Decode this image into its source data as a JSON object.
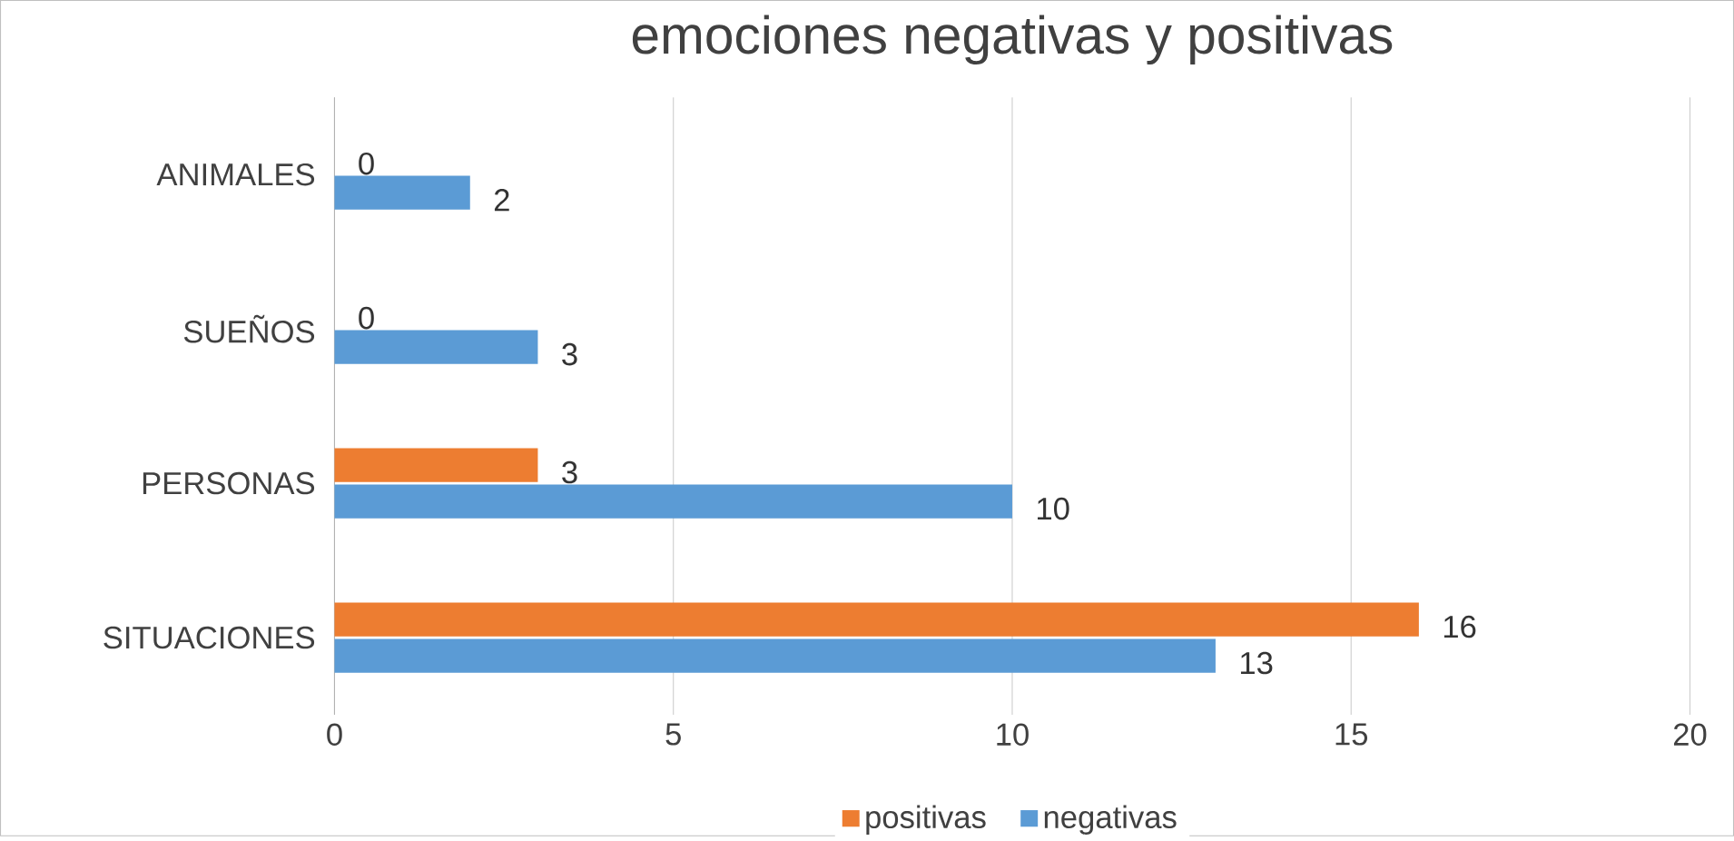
{
  "chart_data": {
    "type": "bar",
    "orientation": "horizontal",
    "title": "emociones negativas y positivas",
    "categories": [
      "ANIMALES",
      "SUEÑOS",
      "PERSONAS",
      "SITUACIONES"
    ],
    "series": [
      {
        "name": "positivas",
        "color": "#ed7d31",
        "values": [
          0,
          0,
          3,
          16
        ]
      },
      {
        "name": "negativas",
        "color": "#5b9bd5",
        "values": [
          2,
          3,
          10,
          13
        ]
      }
    ],
    "xlim": [
      0,
      20
    ],
    "xticks": [
      0,
      5,
      10,
      15,
      20
    ],
    "grid": "x",
    "legend": "bottom",
    "data_labels": true
  }
}
